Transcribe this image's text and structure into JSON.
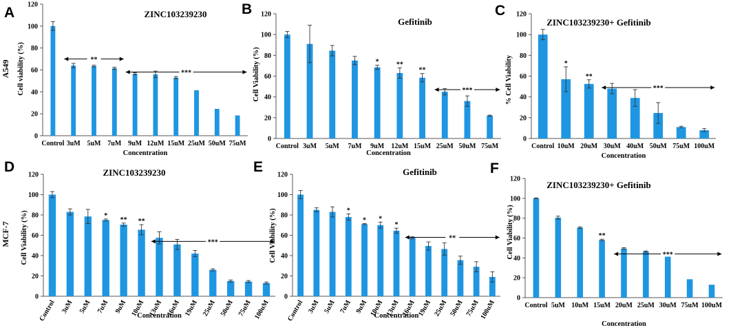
{
  "chart_data": [
    {
      "id": "A",
      "letter": "A",
      "type": "bar",
      "title": "ZINC103239230",
      "cell_line": "A549",
      "ylabel": "Cell viability (%)",
      "xlabel": "Concentration",
      "ylim": [
        0,
        120
      ],
      "yticks": [
        0,
        20,
        40,
        60,
        80,
        100,
        120
      ],
      "categories": [
        "Control",
        "3uM",
        "5uM",
        "7uM",
        "9uM",
        "12uM",
        "15uM",
        "25uM",
        "50uM",
        "75uM"
      ],
      "values": [
        100,
        64,
        63.5,
        61.5,
        56.5,
        56,
        53,
        41.5,
        24.5,
        18.5
      ],
      "errors": [
        4,
        2,
        0.8,
        1,
        1,
        3,
        1,
        0,
        0,
        0
      ],
      "annotations": [
        {
          "label": "**",
          "from": 1,
          "to": 3,
          "y": 70
        },
        {
          "label": "***",
          "from": 4,
          "to": 9,
          "y": 58
        }
      ],
      "bar_marks": []
    },
    {
      "id": "B",
      "letter": "B",
      "type": "bar",
      "title": "Gefitinib",
      "ylabel": "Cell Viability (%)",
      "xlabel": "Concentration",
      "ylim": [
        0,
        120
      ],
      "yticks": [
        0,
        20,
        40,
        60,
        80,
        100,
        120
      ],
      "categories": [
        "Control",
        "3uM",
        "5uM",
        "7uM",
        "9uM",
        "12uM",
        "15uM",
        "25uM",
        "50uM",
        "75uM"
      ],
      "values": [
        100,
        91,
        84.5,
        75,
        68.5,
        63,
        58.5,
        45,
        36,
        22
      ],
      "errors": [
        3,
        18,
        5,
        4,
        2,
        5,
        4,
        3,
        5,
        0.5
      ],
      "annotations": [
        {
          "label": "***",
          "from": 7,
          "to": 9,
          "y": 47
        }
      ],
      "bar_marks": [
        {
          "index": 4,
          "label": "*"
        },
        {
          "index": 5,
          "label": "**"
        },
        {
          "index": 6,
          "label": "**"
        }
      ]
    },
    {
      "id": "C",
      "letter": "C",
      "type": "bar",
      "title": "ZINC103239230+ Gefitinib",
      "ylabel": "% Cell Viability",
      "xlabel": "Concentration",
      "ylim": [
        0,
        120
      ],
      "yticks": [
        0,
        20,
        40,
        60,
        80,
        100,
        120
      ],
      "categories": [
        "Control",
        "10uM",
        "20uM",
        "30uM",
        "40uM",
        "50uM",
        "75uM",
        "100uM"
      ],
      "values": [
        100,
        57,
        52.5,
        48,
        39,
        24.5,
        11,
        8
      ],
      "errors": [
        5,
        12,
        4,
        5,
        8,
        10,
        0.8,
        1.5
      ],
      "annotations": [
        {
          "label": "***",
          "from": 3,
          "to": 7,
          "y": 49
        }
      ],
      "bar_marks": [
        {
          "index": 1,
          "label": "*"
        },
        {
          "index": 2,
          "label": "**"
        }
      ]
    },
    {
      "id": "D",
      "letter": "D",
      "type": "bar",
      "title": "ZINC103239230",
      "cell_line": "MCF-7",
      "ylabel": "Cell Viability (%)",
      "xlabel": "Concentration",
      "ylim": [
        0,
        120
      ],
      "yticks": [
        0,
        20,
        40,
        60,
        80,
        100,
        120
      ],
      "categories": [
        "Control",
        "3uM",
        "5uM",
        "7uM",
        "9uM",
        "10uM",
        "13uM",
        "16uM",
        "19uM",
        "25uM",
        "50uM",
        "75uM",
        "100uM"
      ],
      "values": [
        100,
        83,
        78.5,
        75,
        70.5,
        65.5,
        57.5,
        51,
        42,
        26,
        15,
        14.5,
        13
      ],
      "errors": [
        3,
        3,
        7,
        1,
        1.5,
        5,
        6,
        5,
        3,
        1,
        1,
        1,
        1
      ],
      "annotations": [
        {
          "label": "***",
          "from": 6,
          "to": 12,
          "y": 54
        }
      ],
      "bar_marks": [
        {
          "index": 3,
          "label": "*"
        },
        {
          "index": 4,
          "label": "**"
        },
        {
          "index": 5,
          "label": "**"
        }
      ]
    },
    {
      "id": "E",
      "letter": "E",
      "type": "bar",
      "title": "Gefitinib",
      "ylabel": "Cell Viability (%)",
      "xlabel": "Concentration",
      "ylim": [
        0,
        120
      ],
      "yticks": [
        0,
        20,
        40,
        60,
        80,
        100,
        120
      ],
      "categories": [
        "Control",
        "3uM",
        "5uM",
        "7uM",
        "9uM",
        "10uM",
        "13uM",
        "16uM",
        "19uM",
        "25uM",
        "50uM",
        "75uM",
        "100uM"
      ],
      "values": [
        100,
        85,
        83,
        78,
        71,
        70,
        64.5,
        57.5,
        49.5,
        46.5,
        35.5,
        29,
        19
      ],
      "errors": [
        4,
        2,
        5,
        3,
        0.5,
        3,
        2.5,
        1,
        4,
        6,
        4,
        5,
        5
      ],
      "annotations": [
        {
          "label": "**",
          "from": 7,
          "to": 12,
          "y": 58
        }
      ],
      "bar_marks": [
        {
          "index": 3,
          "label": "*"
        },
        {
          "index": 4,
          "label": "*"
        },
        {
          "index": 5,
          "label": "*"
        },
        {
          "index": 6,
          "label": "*"
        }
      ]
    },
    {
      "id": "F",
      "letter": "F",
      "type": "bar",
      "title": "ZINC103239230+ Gefitinib",
      "ylabel": "Cell Viability (%)",
      "xlabel": "Concentration",
      "ylim": [
        0,
        120
      ],
      "yticks": [
        0,
        20,
        40,
        60,
        80,
        100,
        120
      ],
      "categories": [
        "Control",
        "5uM",
        "10uM",
        "15uM",
        "20uM",
        "25uM",
        "30uM",
        "75uM",
        "100uM"
      ],
      "values": [
        100,
        80.5,
        70.5,
        58,
        49.5,
        46.5,
        44,
        18.5,
        13
      ],
      "errors": [
        0.5,
        1.5,
        0.8,
        0.8,
        0.8,
        0.5,
        0.5,
        0,
        0
      ],
      "annotations": [
        {
          "label": "***",
          "from": 4,
          "to": 8,
          "y": 44
        }
      ],
      "bar_marks": [
        {
          "index": 3,
          "label": "**"
        }
      ]
    }
  ]
}
